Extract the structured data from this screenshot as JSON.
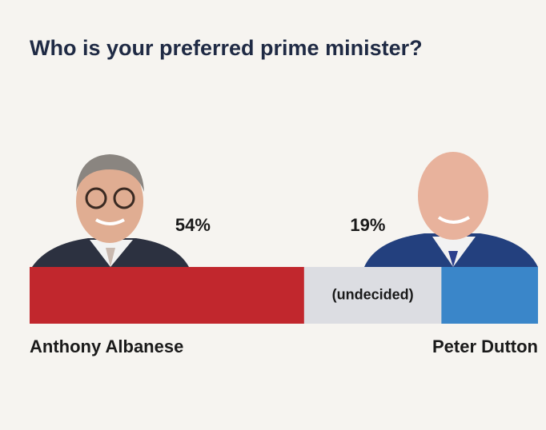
{
  "chart_data": {
    "type": "bar",
    "orientation": "horizontal",
    "stacked": true,
    "title": "Who is your preferred prime minister?",
    "xlim": [
      0,
      100
    ],
    "series": [
      {
        "name": "Anthony Albanese",
        "color": "#c1272d",
        "values": [
          54
        ],
        "value_labels": [
          "54%"
        ]
      },
      {
        "name": "(undecided)",
        "color": "#dcdde2",
        "values": [
          27
        ]
      },
      {
        "name": "Peter Dutton",
        "color": "#3a86c9",
        "values": [
          19
        ],
        "value_labels": [
          "19%"
        ]
      }
    ]
  }
}
